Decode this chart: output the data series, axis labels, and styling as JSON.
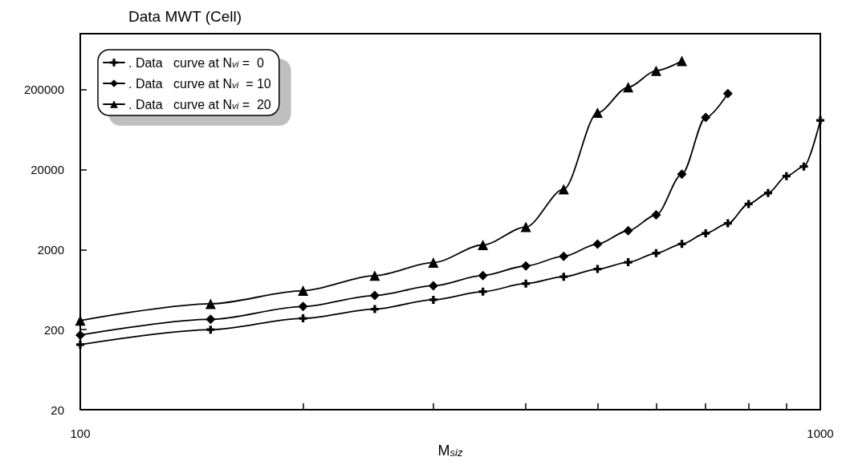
{
  "chart_data": {
    "type": "line",
    "title": "Data MWT (Cell)",
    "xlabel": "M$_{siz}$",
    "x": [
      100,
      150,
      200,
      250,
      300,
      350,
      400,
      450,
      500,
      550,
      600,
      650,
      700,
      750,
      800,
      850,
      900,
      950,
      1000
    ],
    "series": [
      {
        "name": ". Data   curve at N$_{vi}$ =  0",
        "color": "#000000",
        "marker": "cross",
        "values": [
          130,
          200,
          277,
          361,
          473,
          597,
          753,
          918,
          1145,
          1391,
          1807,
          2355,
          3200,
          4260,
          7450,
          10200,
          16600,
          21900,
          82600
        ]
      },
      {
        "name": ". Data   curve at N$_{vi}$  = 10",
        "color": "#000000",
        "marker": "diamond",
        "values": [
          171,
          269,
          389,
          535,
          707,
          950,
          1250,
          1650,
          2350,
          3450,
          5440,
          17500,
          89700,
          178000,
          null,
          null,
          null,
          null,
          null
        ]
      },
      {
        "name": ". Data   curve at N$_{vi}$ =  20",
        "color": "#000000",
        "marker": "triangle",
        "values": [
          260,
          421,
          614,
          946,
          1380,
          2290,
          3840,
          11400,
          103000,
          214000,
          345000,
          456000,
          null,
          null,
          null,
          null,
          null,
          null,
          null
        ]
      }
    ],
    "log": "xy",
    "xlim": [
      100,
      1000
    ],
    "ylim": [
      20,
      1000000
    ],
    "xticks": [
      100,
      {
        "value": 200,
        "label": null
      },
      {
        "value": 300,
        "label": null
      },
      {
        "value": 400,
        "label": null
      },
      {
        "value": 500,
        "label": null
      },
      {
        "value": 600,
        "label": null
      },
      {
        "value": 700,
        "label": null
      },
      {
        "value": 800,
        "label": null
      },
      {
        "value": 900,
        "label": null
      },
      1000
    ],
    "yticks": [
      20,
      200,
      2000,
      20000,
      200000
    ],
    "legend": "top left",
    "grid": false,
    "line_style": "solid"
  }
}
